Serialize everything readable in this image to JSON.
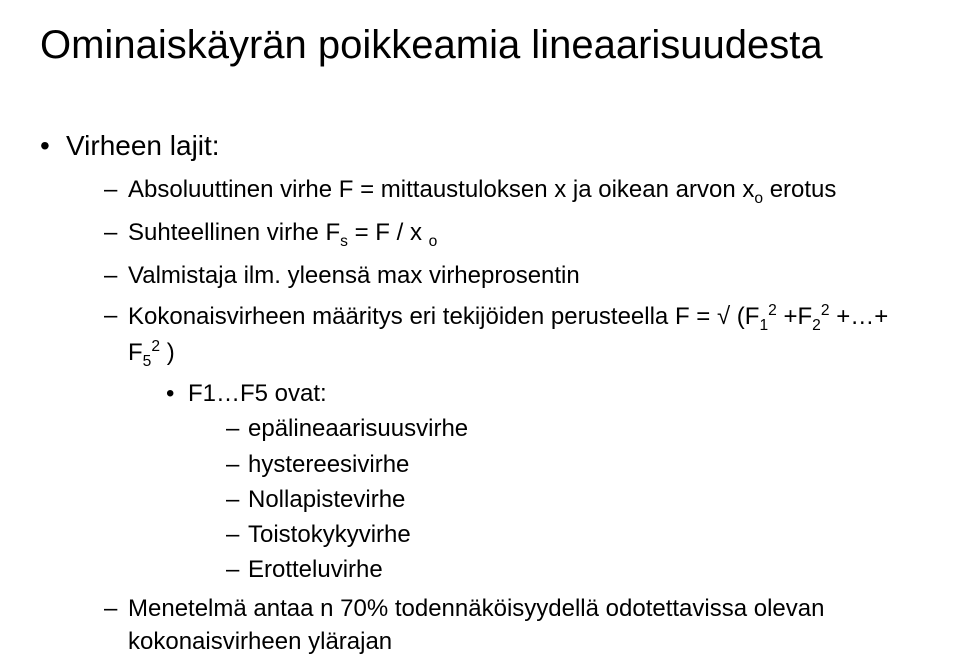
{
  "title": "Ominaiskäyrän poikkeamia lineaarisuudesta",
  "bullets": {
    "l1_0": "Virheen lajit:",
    "l2_0": "Absoluuttinen virhe F = mittaustuloksen x ja oikean arvon x",
    "l2_0_sub": "o",
    "l2_0_tail": " erotus",
    "l2_1_a": "Suhteellinen virhe F",
    "l2_1_sub1": "s",
    "l2_1_b": " = F / x ",
    "l2_1_sub2": "o",
    "l2_2": "Valmistaja ilm. yleensä max virheprosentin",
    "l2_3_a": "Kokonaisvirheen määritys eri tekijöiden perusteella F = √ (F",
    "l2_3_s1": "1",
    "l2_3_p1": "2",
    "l2_3_b": " +F",
    "l2_3_s2": "2",
    "l2_3_p2": "2",
    "l2_3_c": " +…+ F",
    "l2_3_s3": "5",
    "l2_3_p3": "2",
    "l2_3_d": " )",
    "l3_0": "F1…F5  ovat:",
    "l4_0": "epälineaarisuusvirhe",
    "l4_1": "hystereesivirhe",
    "l4_2": "Nollapistevirhe",
    "l4_3": "Toistokykyvirhe",
    "l4_4": "Erotteluvirhe",
    "l2_4": "Menetelmä antaa n 70% todennäköisyydellä odotettavissa olevan kokonaisvirheen ylärajan"
  }
}
